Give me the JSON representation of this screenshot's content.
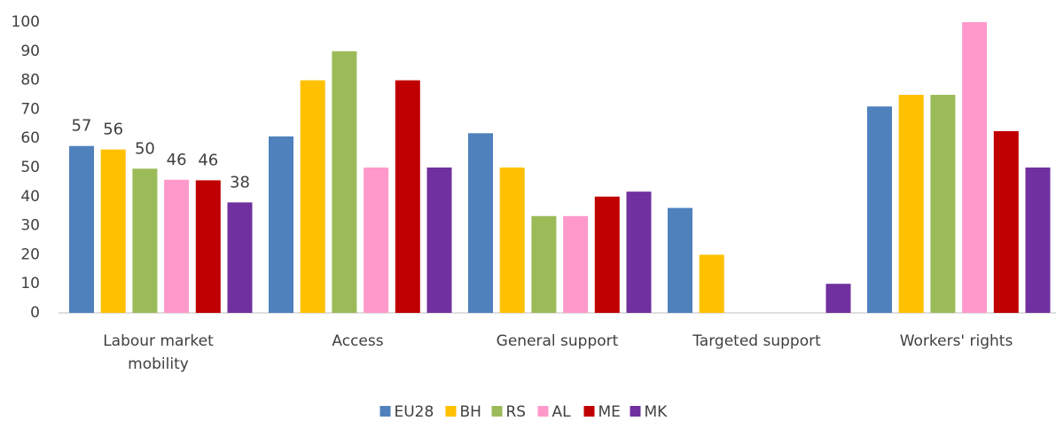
{
  "chart_data": {
    "type": "bar",
    "categories": [
      "Labour market mobility",
      "Access",
      "General support",
      "Targeted support",
      "Workers' rights"
    ],
    "series": [
      {
        "name": "EU28",
        "color": "#4f81bd",
        "values": [
          57.4,
          60.7,
          61.8,
          36.1,
          71
        ],
        "value_labels": [
          "57",
          null,
          null,
          null,
          null
        ]
      },
      {
        "name": "BH",
        "color": "#ffc000",
        "values": [
          56.2,
          80,
          50,
          20,
          75
        ],
        "value_labels": [
          "56",
          null,
          null,
          null,
          null
        ]
      },
      {
        "name": "RS",
        "color": "#9bbb59",
        "values": [
          49.6,
          90,
          33.3,
          0,
          75
        ],
        "value_labels": [
          "50",
          null,
          null,
          null,
          null
        ]
      },
      {
        "name": "AL",
        "color": "#ff99cc",
        "values": [
          45.8,
          50,
          33.3,
          0,
          100
        ],
        "value_labels": [
          "46",
          null,
          null,
          null,
          null
        ]
      },
      {
        "name": "ME",
        "color": "#c00000",
        "values": [
          45.6,
          80,
          40,
          0,
          62.5
        ],
        "value_labels": [
          "46",
          null,
          null,
          null,
          null
        ]
      },
      {
        "name": "MK",
        "color": "#7030a0",
        "values": [
          38,
          50,
          41.7,
          10,
          50
        ],
        "value_labels": [
          "38",
          null,
          null,
          null,
          null
        ]
      }
    ],
    "ylim": [
      0,
      100
    ],
    "yticks": [
      0,
      10,
      20,
      30,
      40,
      50,
      60,
      70,
      80,
      90,
      100
    ],
    "grid": false,
    "legend": "bottom"
  }
}
